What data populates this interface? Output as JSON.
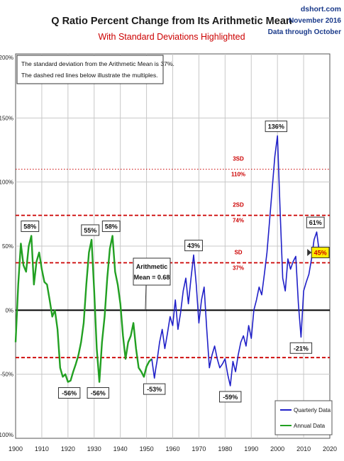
{
  "header": {
    "title": "Q Ratio Percent Change from Its Arithmetic Mean",
    "subtitle": "With Standard Deviations Highlighted",
    "source": "dshort.com",
    "date": "November 2016",
    "data_through": "Data through October"
  },
  "note": {
    "line1": "The standard deviation from the Arithmetic Mean is 37%.",
    "line2": "The dashed red lines below illustrate the multiples."
  },
  "mean_callout": {
    "line1": "Arithmetic",
    "line2": "Mean = 0.68"
  },
  "colors": {
    "quarterly": "#2020c8",
    "annual": "#22a022",
    "sd_line": "#cc0000",
    "zero_line": "#000000",
    "grid": "#c8c8c8",
    "title": "#1a1a1a",
    "subtitle": "#cc0000",
    "latest_box": "#ffee00"
  },
  "chart_data": {
    "type": "line",
    "title": "Q Ratio Percent Change from Its Arithmetic Mean",
    "subtitle": "With Standard Deviations Highlighted",
    "xlim": [
      1900,
      2020
    ],
    "ylim": [
      -100,
      200
    ],
    "x_ticks": [
      "1900",
      "1910",
      "1920",
      "1930",
      "1940",
      "1950",
      "1960",
      "1970",
      "1980",
      "1990",
      "2000",
      "2010",
      "2020"
    ],
    "y_ticks": [
      "-100%",
      "-50%",
      "0%",
      "50%",
      "100%",
      "150%",
      "200%"
    ],
    "grid": true,
    "legend_position": "bottom-right",
    "series": [
      {
        "name": "Annual Data",
        "color": "#22a022",
        "points": [
          [
            1900,
            -25
          ],
          [
            1901,
            20
          ],
          [
            1902,
            52
          ],
          [
            1903,
            35
          ],
          [
            1904,
            30
          ],
          [
            1905,
            50
          ],
          [
            1906,
            58
          ],
          [
            1907,
            20
          ],
          [
            1908,
            38
          ],
          [
            1909,
            45
          ],
          [
            1910,
            32
          ],
          [
            1911,
            22
          ],
          [
            1912,
            20
          ],
          [
            1913,
            8
          ],
          [
            1914,
            -5
          ],
          [
            1915,
            0
          ],
          [
            1916,
            -15
          ],
          [
            1917,
            -45
          ],
          [
            1918,
            -52
          ],
          [
            1919,
            -50
          ],
          [
            1920,
            -56
          ],
          [
            1921,
            -55
          ],
          [
            1922,
            -48
          ],
          [
            1923,
            -42
          ],
          [
            1924,
            -35
          ],
          [
            1925,
            -25
          ],
          [
            1926,
            -10
          ],
          [
            1927,
            20
          ],
          [
            1928,
            45
          ],
          [
            1929,
            55
          ],
          [
            1930,
            15
          ],
          [
            1931,
            -30
          ],
          [
            1932,
            -56
          ],
          [
            1933,
            -25
          ],
          [
            1934,
            -5
          ],
          [
            1935,
            25
          ],
          [
            1936,
            48
          ],
          [
            1937,
            58
          ],
          [
            1938,
            30
          ],
          [
            1939,
            20
          ],
          [
            1940,
            5
          ],
          [
            1941,
            -20
          ],
          [
            1942,
            -38
          ],
          [
            1943,
            -25
          ],
          [
            1944,
            -20
          ],
          [
            1945,
            -10
          ],
          [
            1946,
            -30
          ],
          [
            1947,
            -45
          ],
          [
            1948,
            -48
          ],
          [
            1949,
            -52
          ],
          [
            1950,
            -44
          ],
          [
            1951,
            -40
          ],
          [
            1952,
            -38
          ]
        ]
      },
      {
        "name": "Quarterly Data",
        "color": "#2020c8",
        "points": [
          [
            1952,
            -38
          ],
          [
            1953,
            -53
          ],
          [
            1953.5,
            -46
          ],
          [
            1954,
            -40
          ],
          [
            1955,
            -25
          ],
          [
            1956,
            -15
          ],
          [
            1957,
            -30
          ],
          [
            1958,
            -18
          ],
          [
            1959,
            -5
          ],
          [
            1960,
            -12
          ],
          [
            1961,
            8
          ],
          [
            1962,
            -15
          ],
          [
            1963,
            -2
          ],
          [
            1964,
            15
          ],
          [
            1965,
            25
          ],
          [
            1966,
            5
          ],
          [
            1967,
            25
          ],
          [
            1968,
            43
          ],
          [
            1969,
            20
          ],
          [
            1970,
            -10
          ],
          [
            1971,
            8
          ],
          [
            1972,
            18
          ],
          [
            1973,
            -15
          ],
          [
            1974,
            -45
          ],
          [
            1975,
            -35
          ],
          [
            1976,
            -28
          ],
          [
            1977,
            -38
          ],
          [
            1978,
            -45
          ],
          [
            1979,
            -42
          ],
          [
            1980,
            -38
          ],
          [
            1981,
            -50
          ],
          [
            1982,
            -59
          ],
          [
            1983,
            -40
          ],
          [
            1984,
            -48
          ],
          [
            1985,
            -35
          ],
          [
            1986,
            -25
          ],
          [
            1987,
            -20
          ],
          [
            1988,
            -28
          ],
          [
            1989,
            -12
          ],
          [
            1990,
            -22
          ],
          [
            1991,
            0
          ],
          [
            1992,
            8
          ],
          [
            1993,
            18
          ],
          [
            1994,
            12
          ],
          [
            1995,
            28
          ],
          [
            1996,
            45
          ],
          [
            1997,
            70
          ],
          [
            1998,
            95
          ],
          [
            1999,
            120
          ],
          [
            2000,
            136
          ],
          [
            2001,
            78
          ],
          [
            2002,
            25
          ],
          [
            2003,
            15
          ],
          [
            2004,
            40
          ],
          [
            2005,
            32
          ],
          [
            2006,
            38
          ],
          [
            2007,
            42
          ],
          [
            2008,
            5
          ],
          [
            2009,
            -21
          ],
          [
            2010,
            15
          ],
          [
            2011,
            22
          ],
          [
            2012,
            28
          ],
          [
            2013,
            40
          ],
          [
            2014,
            55
          ],
          [
            2015,
            61
          ],
          [
            2016,
            45
          ]
        ]
      }
    ],
    "reference_lines": [
      {
        "value": 0,
        "label": "",
        "pct": ""
      },
      {
        "value": 37,
        "label": "SD",
        "pct": "37%"
      },
      {
        "value": 74,
        "label": "2SD",
        "pct": "74%"
      },
      {
        "value": 110,
        "label": "3SD",
        "pct": "110%"
      },
      {
        "value": -37,
        "label": "",
        "pct": ""
      }
    ],
    "annotations": [
      {
        "x": 1905.5,
        "y": 58,
        "text": "58%",
        "pos": "above",
        "highlight": false
      },
      {
        "x": 1928.5,
        "y": 55,
        "text": "55%",
        "pos": "above",
        "highlight": false
      },
      {
        "x": 1936.5,
        "y": 58,
        "text": "58%",
        "pos": "above",
        "highlight": false
      },
      {
        "x": 1968,
        "y": 43,
        "text": "43%",
        "pos": "above",
        "highlight": false
      },
      {
        "x": 1999.5,
        "y": 136,
        "text": "136%",
        "pos": "above",
        "highlight": false
      },
      {
        "x": 2014.5,
        "y": 61,
        "text": "61%",
        "pos": "above",
        "highlight": false
      },
      {
        "x": 1920.5,
        "y": -56,
        "text": "-56%",
        "pos": "below",
        "highlight": false
      },
      {
        "x": 1931.5,
        "y": -56,
        "text": "-56%",
        "pos": "below",
        "highlight": false
      },
      {
        "x": 1953,
        "y": -53,
        "text": "-53%",
        "pos": "below",
        "highlight": false
      },
      {
        "x": 1982,
        "y": -59,
        "text": "-59%",
        "pos": "below",
        "highlight": false
      },
      {
        "x": 2009,
        "y": -21,
        "text": "-21%",
        "pos": "below",
        "highlight": false
      },
      {
        "x": 2016,
        "y": 45,
        "text": "45%",
        "pos": "right",
        "highlight": true
      }
    ]
  }
}
